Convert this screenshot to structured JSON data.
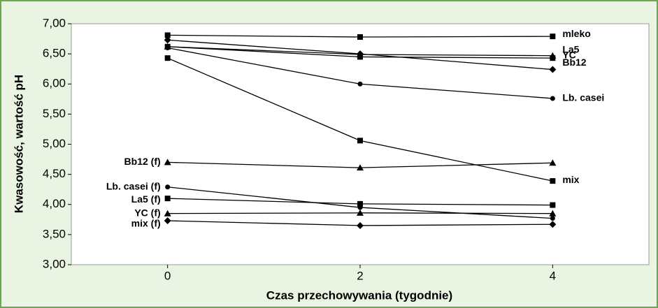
{
  "chart_data": {
    "type": "line",
    "ylabel": "Kwasowość, wartość pH",
    "xlabel": "Czas przechowywania (tygodnie)",
    "x": [
      0,
      2,
      4
    ],
    "xlim": [
      -1,
      5
    ],
    "xticks": [
      0,
      2,
      4
    ],
    "ylim": [
      3,
      7
    ],
    "yticks": [
      {
        "value": 3,
        "label": "3,00"
      },
      {
        "value": 3.5,
        "label": "3,50"
      },
      {
        "value": 4,
        "label": "4,00"
      },
      {
        "value": 4.5,
        "label": "4,50"
      },
      {
        "value": 5,
        "label": "5,00"
      },
      {
        "value": 5.5,
        "label": "5,50"
      },
      {
        "value": 6,
        "label": "6,00"
      },
      {
        "value": 6.5,
        "label": "6,50"
      },
      {
        "value": 7,
        "label": "7,00"
      }
    ],
    "grid": false,
    "series": [
      {
        "name": "mleko",
        "color": "#000000",
        "marker": "square",
        "label_position": "end",
        "values": [
          6.81,
          6.78,
          6.79
        ]
      },
      {
        "name": "La5",
        "color": "#000000",
        "marker": "triangle",
        "label_position": "end",
        "values": [
          6.62,
          6.49,
          6.47
        ]
      },
      {
        "name": "Bb12",
        "color": "#000000",
        "marker": "square",
        "label_position": "end",
        "values": [
          6.62,
          6.45,
          6.43
        ]
      },
      {
        "name": "YC",
        "color": "#000000",
        "marker": "diamond",
        "label_position": "end",
        "values": [
          6.73,
          6.5,
          6.24
        ]
      },
      {
        "name": "Lb. casei",
        "color": "#000000",
        "marker": "circle",
        "label_position": "end",
        "values": [
          6.6,
          6.0,
          5.76
        ]
      },
      {
        "name": "mix",
        "color": "#000000",
        "marker": "square",
        "label_position": "end",
        "values": [
          6.43,
          5.06,
          4.39
        ]
      },
      {
        "name": "Bb12 (f)",
        "color": "#000000",
        "marker": "triangle",
        "label_position": "start",
        "values": [
          4.7,
          4.61,
          4.69
        ]
      },
      {
        "name": "Lb. casei (f)",
        "color": "#000000",
        "marker": "circle",
        "label_position": "start",
        "values": [
          4.29,
          3.95,
          3.77
        ]
      },
      {
        "name": "La5 (f)",
        "color": "#000000",
        "marker": "square",
        "label_position": "start",
        "values": [
          4.1,
          4.01,
          3.99
        ]
      },
      {
        "name": "YC (f)",
        "color": "#000000",
        "marker": "triangle",
        "label_position": "start",
        "values": [
          3.85,
          3.86,
          3.85
        ]
      },
      {
        "name": "mix (f)",
        "color": "#000000",
        "marker": "diamond",
        "label_position": "start",
        "values": [
          3.73,
          3.65,
          3.67
        ]
      }
    ]
  }
}
